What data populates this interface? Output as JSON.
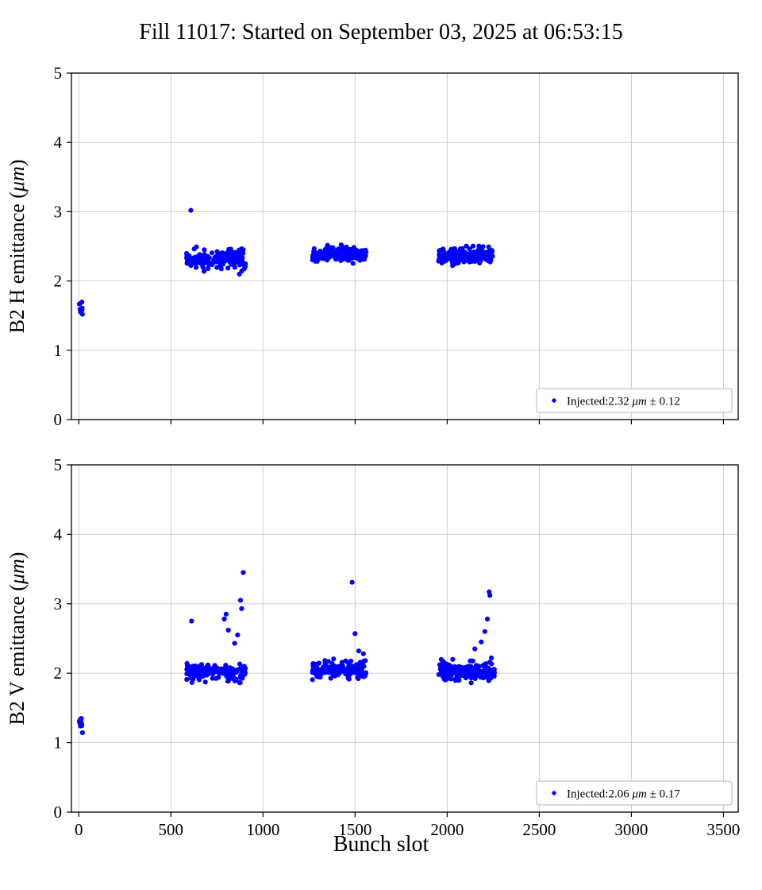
{
  "page": {
    "title": "Fill 11017: Started on September 03, 2025 at 06:53:15",
    "xlabel": "Bunch slot"
  },
  "chart_data": [
    {
      "type": "scatter",
      "title": "Fill 11017: Started on September 03, 2025 at 06:53:15",
      "ylabel": "B2 H emittance (μm)",
      "xlabel": "Bunch slot",
      "xlim": [
        -40,
        3580
      ],
      "ylim": [
        0,
        5
      ],
      "xticks": [
        0,
        500,
        1000,
        1500,
        2000,
        2500,
        3000,
        3500
      ],
      "yticks": [
        0,
        1,
        2,
        3,
        4,
        5
      ],
      "show_xtick_labels": false,
      "grid": true,
      "grid_color": "#c9c9c9",
      "marker_color": "#0000ff",
      "legend": {
        "label": "Injected:2.32 μm ± 0.12",
        "position": "lower right"
      },
      "injected_mean_um": 2.32,
      "injected_sigma_um": 0.12,
      "clusters": [
        {
          "x_range": [
            2,
            20
          ],
          "y_mean": 1.62,
          "y_sd": 0.065,
          "n": 9
        },
        {
          "x_range": [
            585,
            905
          ],
          "y_mean": 2.31,
          "y_sd": 0.07,
          "n": 160
        },
        {
          "x_range": [
            1268,
            1560
          ],
          "y_mean": 2.38,
          "y_sd": 0.055,
          "n": 160
        },
        {
          "x_range": [
            1952,
            2258
          ],
          "y_mean": 2.36,
          "y_sd": 0.055,
          "n": 160
        }
      ],
      "outliers": [
        {
          "x": 608,
          "y": 3.02
        },
        {
          "x": 680,
          "y": 2.14
        },
        {
          "x": 872,
          "y": 2.1
        }
      ]
    },
    {
      "type": "scatter",
      "title": "",
      "ylabel": "B2 V emittance (μm)",
      "xlabel": "Bunch slot",
      "xlim": [
        -40,
        3580
      ],
      "ylim": [
        0,
        5
      ],
      "xticks": [
        0,
        500,
        1000,
        1500,
        2000,
        2500,
        3000,
        3500
      ],
      "yticks": [
        0,
        1,
        2,
        3,
        4,
        5
      ],
      "show_xtick_labels": true,
      "grid": true,
      "grid_color": "#c9c9c9",
      "marker_color": "#0000ff",
      "legend": {
        "label": "Injected:2.06 μm ± 0.17",
        "position": "lower right"
      },
      "injected_mean_um": 2.06,
      "injected_sigma_um": 0.17,
      "clusters": [
        {
          "x_range": [
            2,
            20
          ],
          "y_mean": 1.28,
          "y_sd": 0.06,
          "n": 9
        },
        {
          "x_range": [
            585,
            905
          ],
          "y_mean": 2.02,
          "y_sd": 0.06,
          "n": 170
        },
        {
          "x_range": [
            1268,
            1560
          ],
          "y_mean": 2.05,
          "y_sd": 0.06,
          "n": 170
        },
        {
          "x_range": [
            1952,
            2258
          ],
          "y_mean": 2.03,
          "y_sd": 0.065,
          "n": 170
        }
      ],
      "outliers": [
        {
          "x": 612,
          "y": 2.75
        },
        {
          "x": 790,
          "y": 2.78
        },
        {
          "x": 800,
          "y": 2.85
        },
        {
          "x": 812,
          "y": 2.62
        },
        {
          "x": 846,
          "y": 2.43
        },
        {
          "x": 862,
          "y": 2.55
        },
        {
          "x": 878,
          "y": 3.05
        },
        {
          "x": 884,
          "y": 2.93
        },
        {
          "x": 893,
          "y": 3.45
        },
        {
          "x": 1484,
          "y": 3.31
        },
        {
          "x": 1500,
          "y": 2.57
        },
        {
          "x": 1520,
          "y": 2.32
        },
        {
          "x": 1545,
          "y": 2.28
        },
        {
          "x": 1556,
          "y": 2.18
        },
        {
          "x": 2150,
          "y": 2.35
        },
        {
          "x": 2185,
          "y": 2.45
        },
        {
          "x": 2205,
          "y": 2.6
        },
        {
          "x": 2218,
          "y": 2.78
        },
        {
          "x": 2228,
          "y": 3.17
        },
        {
          "x": 2232,
          "y": 3.12
        },
        {
          "x": 2240,
          "y": 2.22
        }
      ]
    }
  ]
}
